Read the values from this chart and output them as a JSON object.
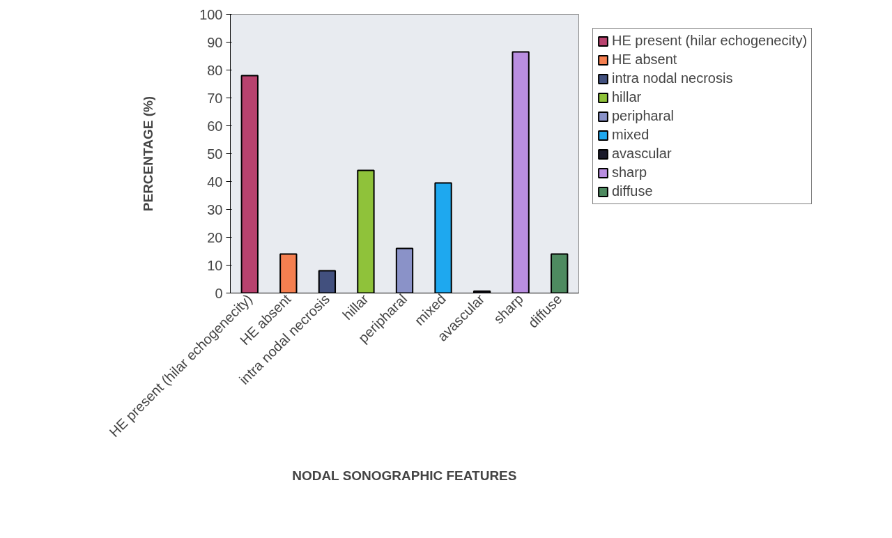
{
  "chart_data": {
    "type": "bar",
    "xlabel": "NODAL SONOGRAPHIC FEATURES",
    "ylabel": "PERCENTAGE (%)",
    "categories": [
      "HE present (hilar echogenecity)",
      "HE absent",
      "intra nodal necrosis",
      "hillar",
      "peripharal",
      "mixed",
      "avascular",
      "sharp",
      "diffuse"
    ],
    "series": [
      {
        "name": "HE present (hilar echogenecity)",
        "color": "#b8426e",
        "values": [
          78,
          null,
          null,
          null,
          null,
          null,
          null,
          null,
          null
        ]
      },
      {
        "name": "HE absent",
        "color": "#f47f50",
        "values": [
          null,
          14,
          null,
          null,
          null,
          null,
          null,
          null,
          null
        ]
      },
      {
        "name": "intra nodal necrosis",
        "color": "#42507e",
        "values": [
          null,
          null,
          8,
          null,
          null,
          null,
          null,
          null,
          null
        ]
      },
      {
        "name": "hillar",
        "color": "#8fc23a",
        "values": [
          null,
          null,
          null,
          44,
          null,
          null,
          null,
          null,
          null
        ]
      },
      {
        "name": "peripharal",
        "color": "#8a92c8",
        "values": [
          null,
          null,
          null,
          null,
          16,
          null,
          null,
          null,
          null
        ]
      },
      {
        "name": "mixed",
        "color": "#1ea8ef",
        "values": [
          null,
          null,
          null,
          null,
          null,
          39.5,
          null,
          null,
          null
        ]
      },
      {
        "name": "avascular",
        "color": "#1a1a2a",
        "values": [
          null,
          null,
          null,
          null,
          null,
          null,
          0.7,
          null,
          null
        ]
      },
      {
        "name": "sharp",
        "color": "#b98ee0",
        "values": [
          null,
          null,
          null,
          null,
          null,
          null,
          null,
          86.5,
          null
        ]
      },
      {
        "name": "diffuse",
        "color": "#4e8a60",
        "values": [
          null,
          null,
          null,
          null,
          null,
          null,
          null,
          null,
          14
        ]
      }
    ],
    "ylim": [
      0,
      100
    ],
    "yticks": [
      0,
      10,
      20,
      30,
      40,
      50,
      60,
      70,
      80,
      90,
      100
    ],
    "grid": false,
    "legend": "right"
  }
}
